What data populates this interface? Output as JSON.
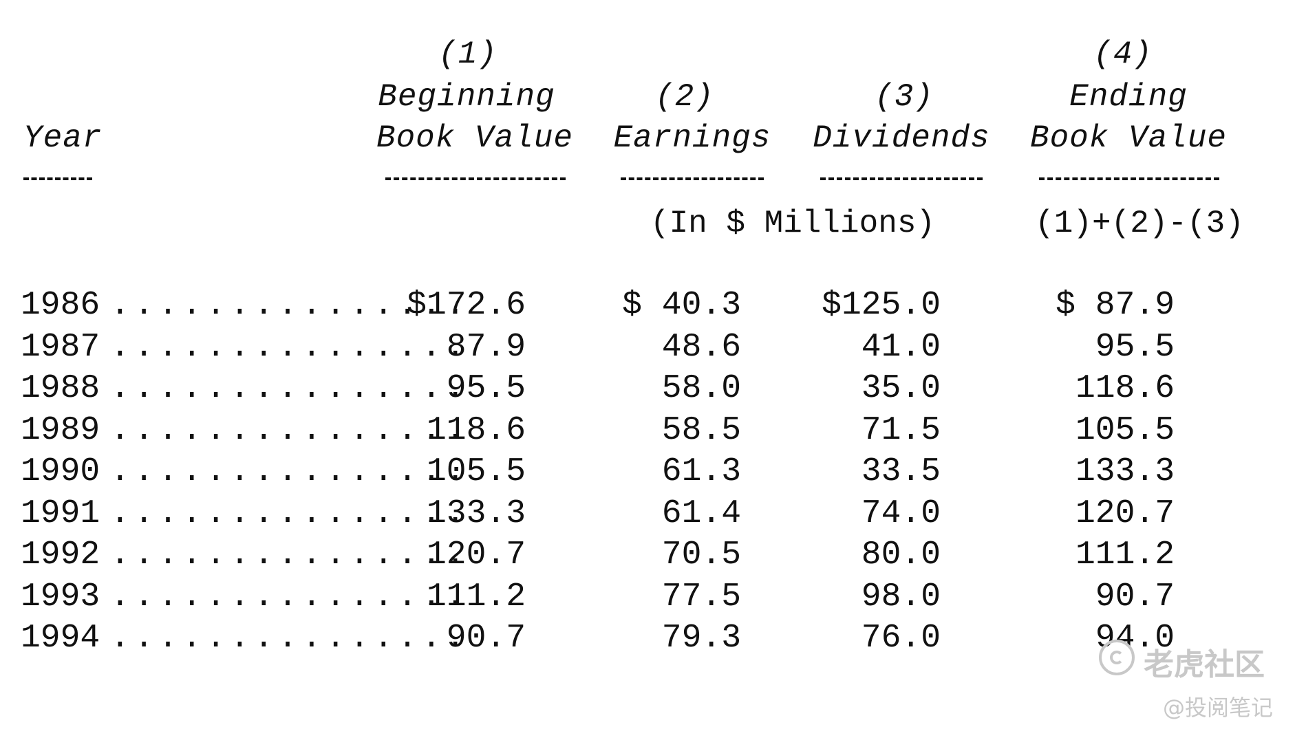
{
  "headers": {
    "year": "Year",
    "col1_num": "(1)",
    "col1_line1": "Beginning",
    "col1_line2": "Book Value",
    "col2_num": "(2)",
    "col2_label": "Earnings",
    "col3_num": "(3)",
    "col3_label": "Dividends",
    "col4_num": "(4)",
    "col4_line1": "Ending",
    "col4_line2": "Book Value"
  },
  "notes": {
    "units": "(In $ Millions)",
    "formula": "(1)+(2)-(3)"
  },
  "leader": "...............",
  "rows": [
    {
      "year": "1986",
      "beginning": "$172.6",
      "earnings": "$ 40.3",
      "dividends": "$125.0",
      "ending": "$ 87.9"
    },
    {
      "year": "1987",
      "beginning": "87.9",
      "earnings": "48.6",
      "dividends": "41.0",
      "ending": "95.5"
    },
    {
      "year": "1988",
      "beginning": "95.5",
      "earnings": "58.0",
      "dividends": "35.0",
      "ending": "118.6"
    },
    {
      "year": "1989",
      "beginning": "118.6",
      "earnings": "58.5",
      "dividends": "71.5",
      "ending": "105.5"
    },
    {
      "year": "1990",
      "beginning": "105.5",
      "earnings": "61.3",
      "dividends": "33.5",
      "ending": "133.3"
    },
    {
      "year": "1991",
      "beginning": "133.3",
      "earnings": "61.4",
      "dividends": "74.0",
      "ending": "120.7"
    },
    {
      "year": "1992",
      "beginning": "120.7",
      "earnings": "70.5",
      "dividends": "80.0",
      "ending": "111.2"
    },
    {
      "year": "1993",
      "beginning": "111.2",
      "earnings": "77.5",
      "dividends": "98.0",
      "ending": "90.7"
    },
    {
      "year": "1994",
      "beginning": "90.7",
      "earnings": "79.3",
      "dividends": "76.0",
      "ending": "94.0"
    }
  ],
  "watermark": {
    "brand": "老虎社区",
    "author": "@投阅笔记"
  }
}
